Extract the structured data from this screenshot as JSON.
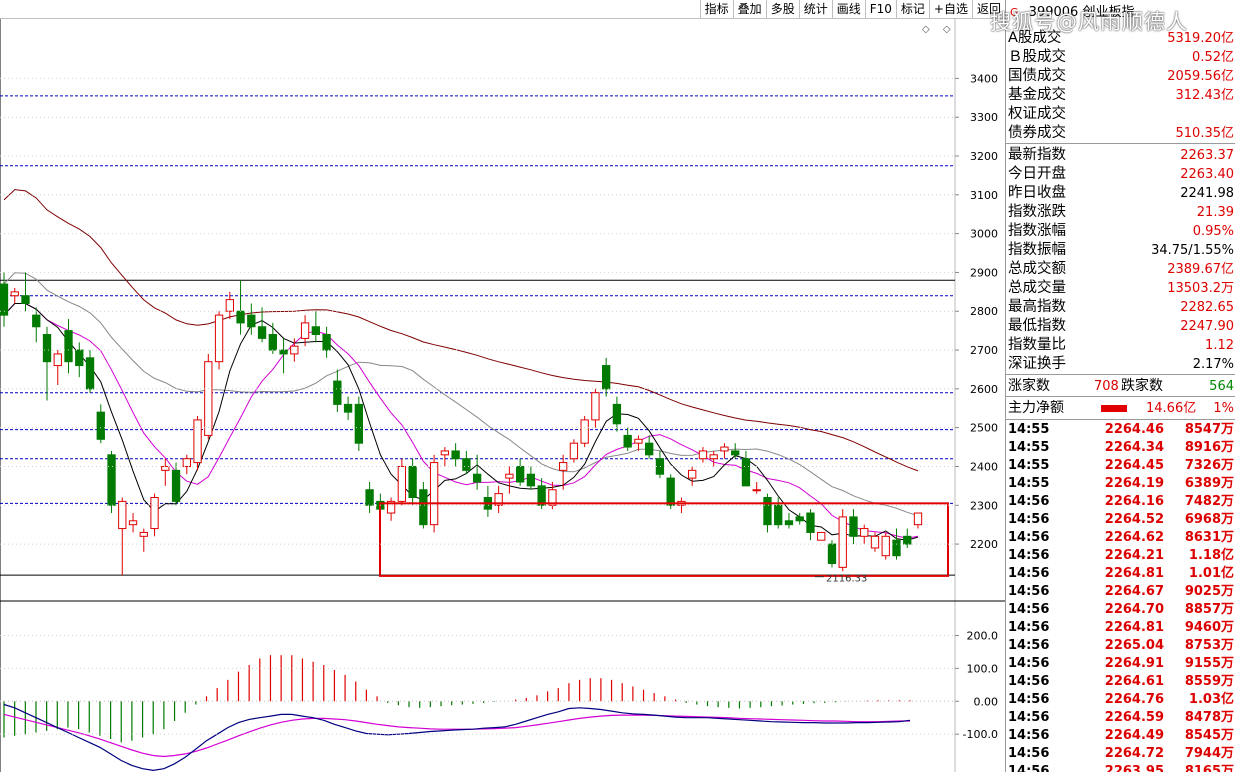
{
  "toolbar": {
    "buttons": [
      "指标",
      "叠加",
      "多股",
      "统计",
      "画线",
      "F10",
      "标记",
      "+自选",
      "返回"
    ]
  },
  "top_icons": "◇ ◇",
  "watermark": "搜狐号@风雨顺德人",
  "header": {
    "code": "399006",
    "name": "创业板指",
    "tag": "G"
  },
  "quote": [
    {
      "label": "A股成交",
      "value": "5319.20亿"
    },
    {
      "label": "Ｂ股成交",
      "value": "0.52亿"
    },
    {
      "label": "国债成交",
      "value": "2059.56亿"
    },
    {
      "label": "基金成交",
      "value": "312.43亿"
    },
    {
      "label": "权证成交",
      "value": ""
    },
    {
      "label": "债券成交",
      "value": "510.35亿"
    },
    {
      "label": "最新指数",
      "value": "2263.37"
    },
    {
      "label": "今日开盘",
      "value": "2263.40"
    },
    {
      "label": "昨日收盘",
      "value": "2241.98"
    },
    {
      "label": "指数涨跌",
      "value": "21.39"
    },
    {
      "label": "指数涨幅",
      "value": "0.95%"
    },
    {
      "label": "指数振幅",
      "value": "34.75/1.55%"
    },
    {
      "label": "总成交额",
      "value": "2389.67亿"
    },
    {
      "label": "总成交量",
      "value": "13503.2万"
    },
    {
      "label": "最高指数",
      "value": "2282.65"
    },
    {
      "label": "最低指数",
      "value": "2247.90"
    },
    {
      "label": "指数量比",
      "value": "1.12"
    },
    {
      "label": "深证换手",
      "value": "2.17%"
    }
  ],
  "breadth": {
    "up_label": "涨家数",
    "up": "708",
    "down_label": "跌家数",
    "down": "564"
  },
  "netflow": {
    "label": "主力净额",
    "value": "14.66亿",
    "pct": "1%"
  },
  "ticks": [
    {
      "t": "14:55",
      "p": "2264.46",
      "v": "8547万"
    },
    {
      "t": "14:55",
      "p": "2264.34",
      "v": "8916万"
    },
    {
      "t": "14:55",
      "p": "2264.45",
      "v": "7326万"
    },
    {
      "t": "14:55",
      "p": "2264.19",
      "v": "6389万"
    },
    {
      "t": "14:56",
      "p": "2264.16",
      "v": "7482万"
    },
    {
      "t": "14:56",
      "p": "2264.52",
      "v": "6968万"
    },
    {
      "t": "14:56",
      "p": "2264.62",
      "v": "8631万"
    },
    {
      "t": "14:56",
      "p": "2264.21",
      "v": "1.18亿"
    },
    {
      "t": "14:56",
      "p": "2264.81",
      "v": "1.01亿"
    },
    {
      "t": "14:56",
      "p": "2264.67",
      "v": "9025万"
    },
    {
      "t": "14:56",
      "p": "2264.70",
      "v": "8857万"
    },
    {
      "t": "14:56",
      "p": "2264.81",
      "v": "9460万"
    },
    {
      "t": "14:56",
      "p": "2265.04",
      "v": "8753万"
    },
    {
      "t": "14:56",
      "p": "2264.91",
      "v": "9155万"
    },
    {
      "t": "14:56",
      "p": "2264.61",
      "v": "8559万"
    },
    {
      "t": "14:56",
      "p": "2264.76",
      "v": "1.03亿"
    },
    {
      "t": "14:56",
      "p": "2264.59",
      "v": "8478万"
    },
    {
      "t": "14:56",
      "p": "2264.49",
      "v": "8545万"
    },
    {
      "t": "14:56",
      "p": "2264.72",
      "v": "7944万"
    },
    {
      "t": "14:56",
      "p": "2263.95",
      "v": "8165万"
    }
  ],
  "chart_data": [
    {
      "type": "candlestick",
      "ylim": [
        2110,
        3450
      ],
      "y_ticks": [
        "3400",
        "3300",
        "3200",
        "3100",
        "3000",
        "2900",
        "2800",
        "2700",
        "2600",
        "2500",
        "2400",
        "2300",
        "2200"
      ],
      "low_annotation": "2116.33",
      "colors": {
        "up": "#e00000",
        "down": "#007a00",
        "ma5": "#000000",
        "ma10": "#d400d4",
        "ma20": "#888888",
        "ma60": "#800000",
        "dash": "#0000c0",
        "box": "#e00000"
      },
      "dashed_levels": [
        3355,
        3175,
        2840,
        2590,
        2495,
        2420,
        2305
      ],
      "solid_levels": [
        2880,
        2120
      ],
      "highlight_range": [
        2118,
        2305
      ],
      "candles": [
        [
          2870,
          2900,
          2760,
          2790
        ],
        [
          2840,
          2860,
          2820,
          2850
        ],
        [
          2840,
          2900,
          2800,
          2820
        ],
        [
          2790,
          2810,
          2720,
          2760
        ],
        [
          2740,
          2760,
          2570,
          2670
        ],
        [
          2660,
          2700,
          2610,
          2690
        ],
        [
          2750,
          2780,
          2640,
          2670
        ],
        [
          2700,
          2720,
          2630,
          2660
        ],
        [
          2680,
          2700,
          2590,
          2600
        ],
        [
          2540,
          2560,
          2460,
          2470
        ],
        [
          2430,
          2440,
          2280,
          2300
        ],
        [
          2240,
          2320,
          2120,
          2310
        ],
        [
          2250,
          2280,
          2230,
          2260
        ],
        [
          2220,
          2240,
          2180,
          2230
        ],
        [
          2240,
          2330,
          2220,
          2320
        ],
        [
          2390,
          2420,
          2350,
          2400
        ],
        [
          2390,
          2410,
          2300,
          2310
        ],
        [
          2400,
          2430,
          2380,
          2420
        ],
        [
          2410,
          2530,
          2390,
          2520
        ],
        [
          2480,
          2690,
          2470,
          2670
        ],
        [
          2670,
          2800,
          2650,
          2790
        ],
        [
          2800,
          2850,
          2780,
          2830
        ],
        [
          2800,
          2880,
          2740,
          2770
        ],
        [
          2790,
          2820,
          2740,
          2760
        ],
        [
          2760,
          2810,
          2720,
          2730
        ],
        [
          2740,
          2770,
          2690,
          2700
        ],
        [
          2700,
          2730,
          2640,
          2690
        ],
        [
          2690,
          2730,
          2670,
          2710
        ],
        [
          2730,
          2790,
          2710,
          2770
        ],
        [
          2760,
          2800,
          2720,
          2740
        ],
        [
          2740,
          2760,
          2680,
          2700
        ],
        [
          2620,
          2650,
          2540,
          2560
        ],
        [
          2560,
          2580,
          2520,
          2540
        ],
        [
          2560,
          2580,
          2440,
          2460
        ],
        [
          2340,
          2360,
          2280,
          2300
        ],
        [
          2310,
          2330,
          2270,
          2290
        ],
        [
          2280,
          2320,
          2260,
          2310
        ],
        [
          2310,
          2420,
          2300,
          2400
        ],
        [
          2400,
          2420,
          2300,
          2320
        ],
        [
          2340,
          2360,
          2240,
          2250
        ],
        [
          2250,
          2430,
          2230,
          2410
        ],
        [
          2430,
          2450,
          2400,
          2440
        ],
        [
          2440,
          2460,
          2400,
          2420
        ],
        [
          2420,
          2440,
          2380,
          2390
        ],
        [
          2380,
          2430,
          2340,
          2360
        ],
        [
          2320,
          2350,
          2270,
          2290
        ],
        [
          2300,
          2350,
          2280,
          2330
        ],
        [
          2370,
          2400,
          2330,
          2380
        ],
        [
          2400,
          2420,
          2350,
          2360
        ],
        [
          2380,
          2400,
          2340,
          2350
        ],
        [
          2350,
          2370,
          2290,
          2300
        ],
        [
          2300,
          2360,
          2290,
          2340
        ],
        [
          2390,
          2430,
          2340,
          2410
        ],
        [
          2420,
          2470,
          2410,
          2460
        ],
        [
          2460,
          2530,
          2450,
          2520
        ],
        [
          2520,
          2600,
          2500,
          2590
        ],
        [
          2660,
          2680,
          2580,
          2600
        ],
        [
          2560,
          2580,
          2490,
          2510
        ],
        [
          2480,
          2500,
          2440,
          2450
        ],
        [
          2460,
          2480,
          2440,
          2470
        ],
        [
          2460,
          2480,
          2420,
          2430
        ],
        [
          2420,
          2440,
          2370,
          2380
        ],
        [
          2370,
          2380,
          2290,
          2300
        ],
        [
          2300,
          2320,
          2280,
          2310
        ],
        [
          2370,
          2400,
          2350,
          2390
        ],
        [
          2420,
          2450,
          2410,
          2440
        ],
        [
          2420,
          2440,
          2400,
          2430
        ],
        [
          2440,
          2460,
          2420,
          2450
        ],
        [
          2440,
          2460,
          2420,
          2430
        ],
        [
          2420,
          2440,
          2350,
          2350
        ],
        [
          2340,
          2360,
          2330,
          2340
        ],
        [
          2320,
          2330,
          2230,
          2250
        ],
        [
          2300,
          2320,
          2240,
          2250
        ],
        [
          2260,
          2280,
          2240,
          2250
        ],
        [
          2270,
          2280,
          2250,
          2260
        ],
        [
          2280,
          2290,
          2210,
          2230
        ],
        [
          2210,
          2230,
          2210,
          2230
        ],
        [
          2200,
          2210,
          2140,
          2150
        ],
        [
          2140,
          2290,
          2130,
          2270
        ],
        [
          2270,
          2290,
          2200,
          2220
        ],
        [
          2220,
          2250,
          2200,
          2240
        ],
        [
          2190,
          2230,
          2180,
          2220
        ],
        [
          2170,
          2230,
          2160,
          2220
        ],
        [
          2210,
          2240,
          2160,
          2170
        ],
        [
          2220,
          2240,
          2190,
          2200
        ],
        [
          2250,
          2280,
          2240,
          2280
        ]
      ]
    },
    {
      "type": "macd",
      "ylim": [
        -215,
        250
      ],
      "y_ticks": [
        "200.0",
        "100.0",
        "0.00",
        "-100.0"
      ],
      "histogram": [
        -110,
        -105,
        -100,
        -95,
        -90,
        -85,
        -80,
        -85,
        -95,
        -105,
        -115,
        -125,
        -120,
        -110,
        -100,
        -85,
        -60,
        -35,
        -10,
        15,
        40,
        65,
        90,
        110,
        130,
        140,
        140,
        140,
        130,
        120,
        110,
        95,
        80,
        60,
        35,
        15,
        -5,
        -12,
        -18,
        -20,
        -18,
        -15,
        -12,
        -10,
        -8,
        -5,
        -2,
        0,
        5,
        10,
        18,
        30,
        40,
        55,
        65,
        70,
        70,
        65,
        55,
        45,
        35,
        25,
        15,
        5,
        -5,
        -10,
        -15,
        -18,
        -20,
        -22,
        -20,
        -18,
        -15,
        -13,
        -10,
        -8,
        -6,
        -5,
        -3,
        -1,
        1,
        2,
        3,
        3,
        3,
        3
      ],
      "dif": [
        -10,
        -20,
        -35,
        -50,
        -65,
        -80,
        -95,
        -110,
        -125,
        -140,
        -160,
        -180,
        -195,
        -205,
        -210,
        -205,
        -190,
        -170,
        -145,
        -120,
        -100,
        -80,
        -65,
        -55,
        -50,
        -45,
        -40,
        -40,
        -45,
        -50,
        -58,
        -70,
        -80,
        -90,
        -98,
        -100,
        -102,
        -100,
        -98,
        -95,
        -92,
        -90,
        -88,
        -86,
        -85,
        -82,
        -80,
        -78,
        -70,
        -60,
        -50,
        -40,
        -32,
        -22,
        -20,
        -22,
        -25,
        -30,
        -35,
        -38,
        -40,
        -42,
        -45,
        -48,
        -50,
        -50,
        -50,
        -52,
        -54,
        -56,
        -58,
        -60,
        -62,
        -63,
        -64,
        -65,
        -65,
        -66,
        -66,
        -66,
        -65,
        -65,
        -64,
        -63,
        -62,
        -58
      ],
      "dea": [
        -40,
        -48,
        -56,
        -64,
        -72,
        -80,
        -88,
        -96,
        -105,
        -115,
        -126,
        -137,
        -148,
        -158,
        -165,
        -168,
        -165,
        -160,
        -152,
        -142,
        -130,
        -118,
        -105,
        -93,
        -82,
        -72,
        -64,
        -58,
        -54,
        -52,
        -52,
        -54,
        -56,
        -60,
        -65,
        -70,
        -74,
        -78,
        -80,
        -82,
        -84,
        -85,
        -85,
        -85,
        -85,
        -84,
        -83,
        -82,
        -80,
        -76,
        -72,
        -67,
        -62,
        -57,
        -52,
        -48,
        -45,
        -43,
        -42,
        -42,
        -42,
        -43,
        -44,
        -45,
        -46,
        -47,
        -48,
        -49,
        -50,
        -52,
        -53,
        -54,
        -55,
        -56,
        -57,
        -58,
        -59,
        -60,
        -60,
        -61,
        -62,
        -62,
        -62,
        -61,
        -60,
        -60
      ]
    }
  ]
}
